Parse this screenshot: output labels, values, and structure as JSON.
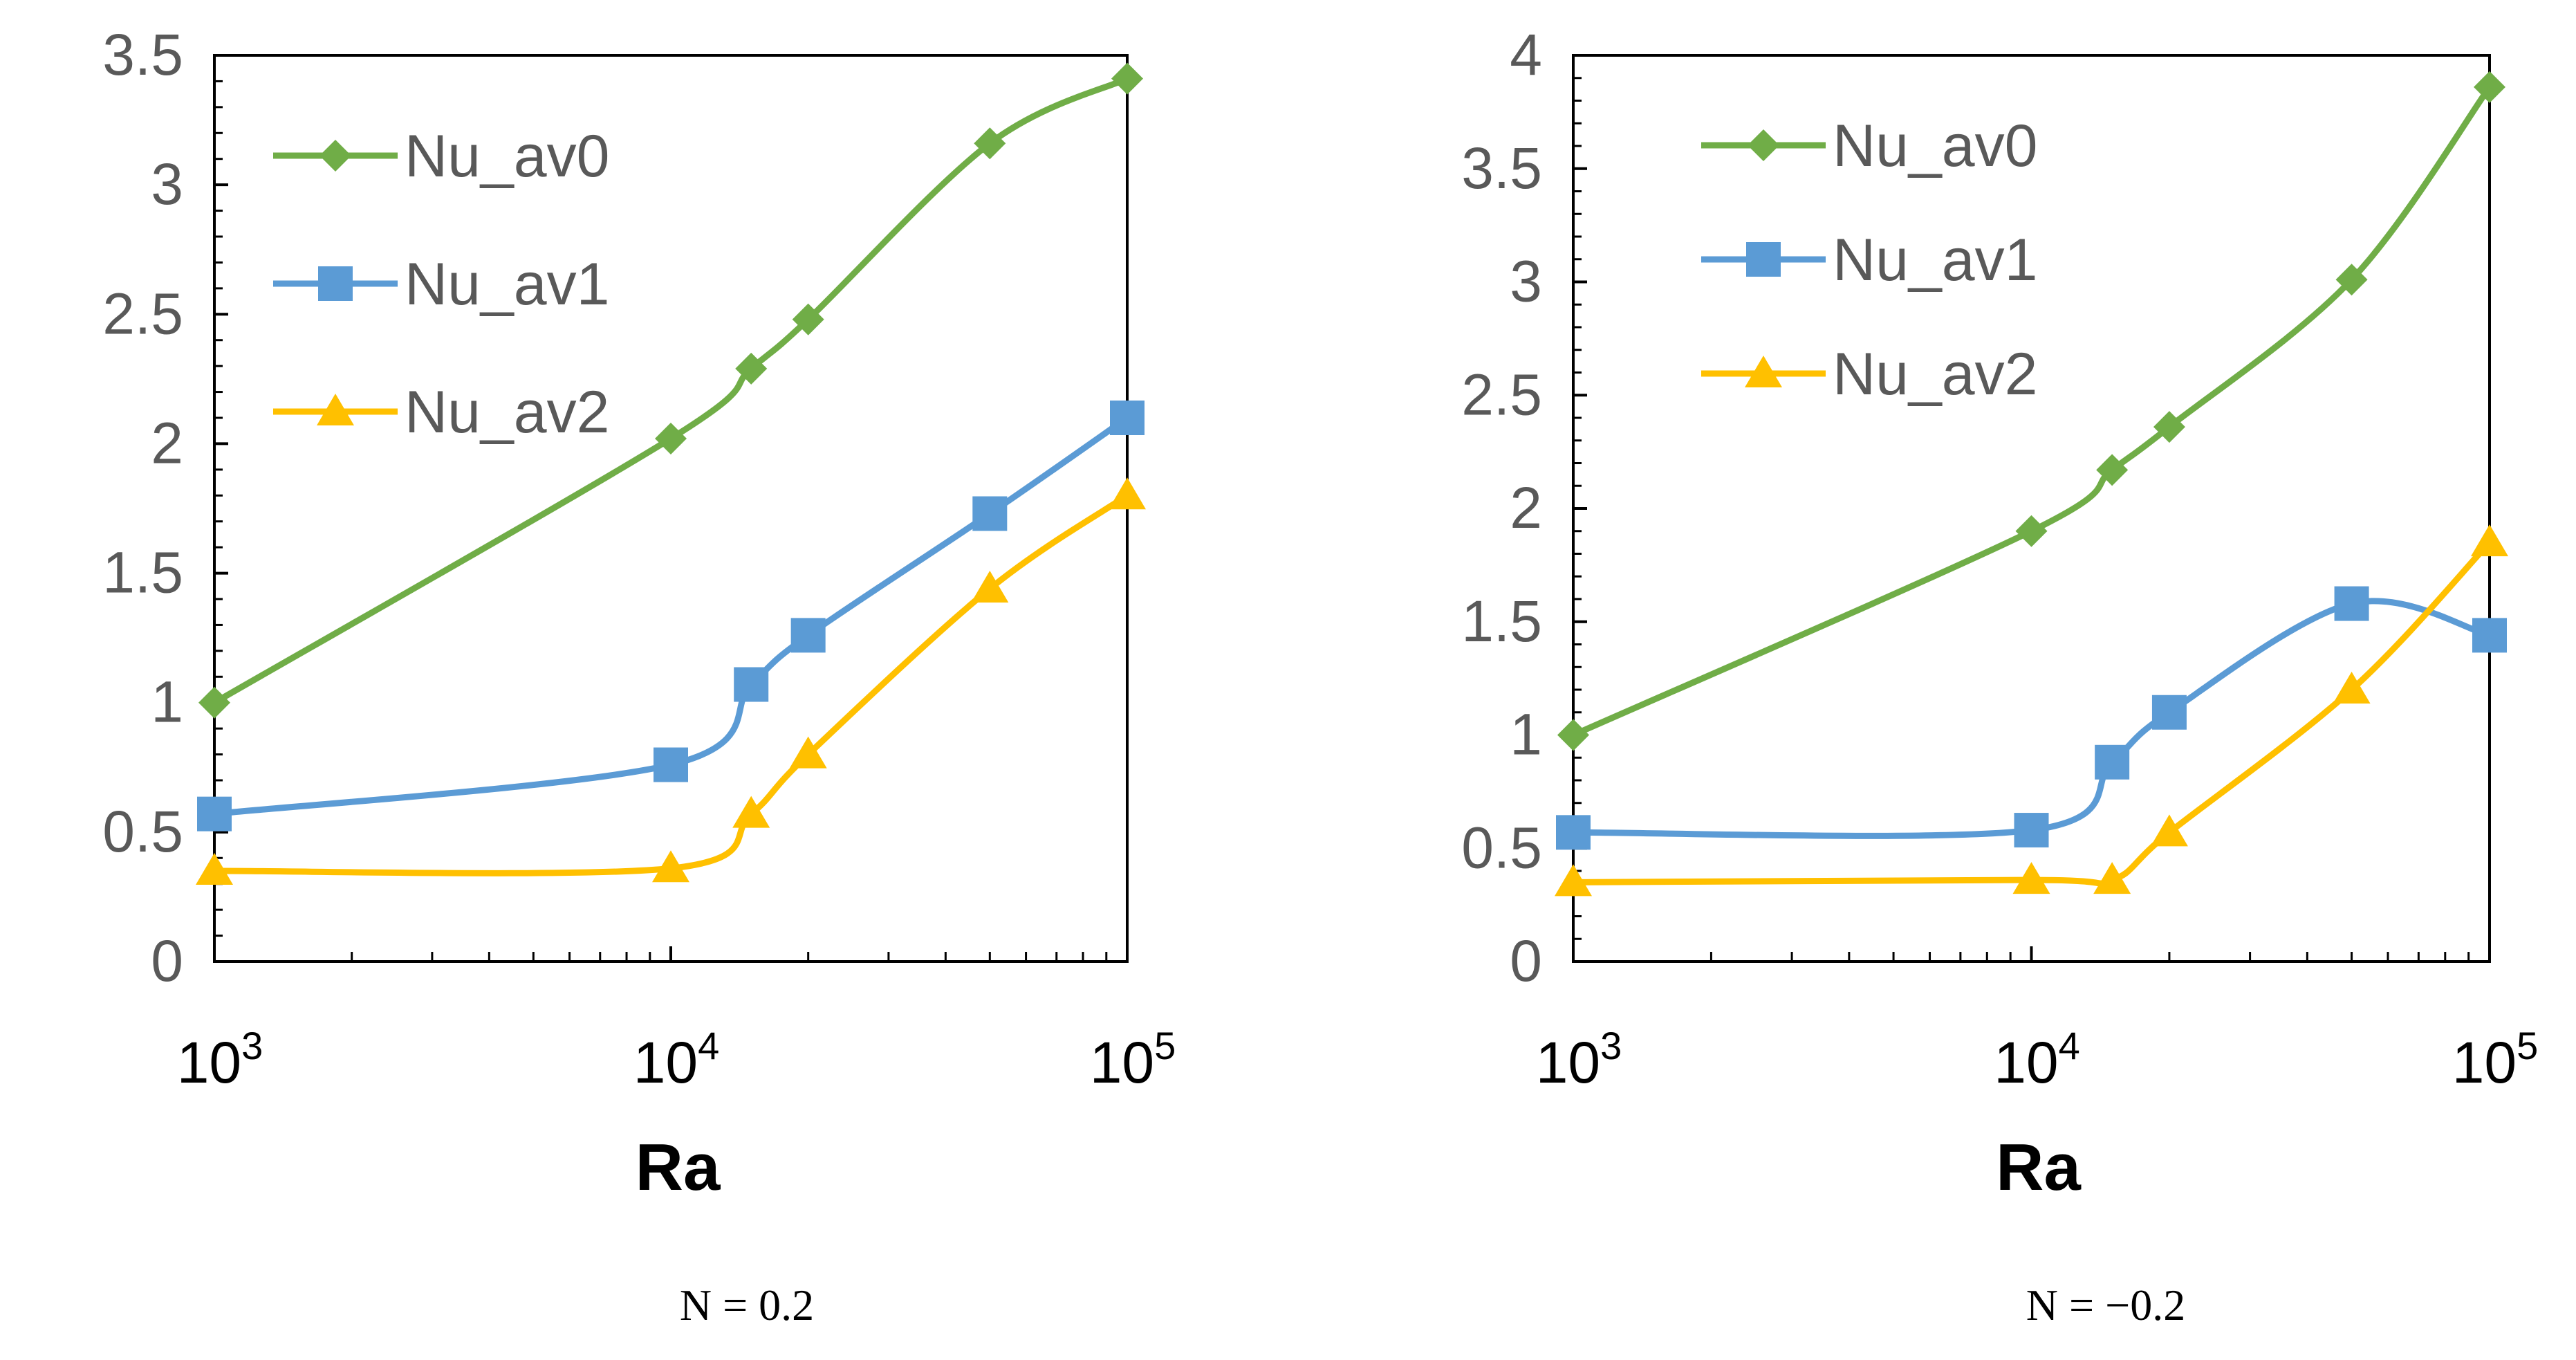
{
  "colors": {
    "s0": "#70AD47",
    "s1": "#5B9BD5",
    "s2": "#FFC000",
    "axis": "#000000",
    "tick_text": "#595959"
  },
  "chart_data": [
    {
      "type": "line",
      "caption": "N = 0.2",
      "xlabel": "Ra",
      "ylabel": "",
      "x_scale": "log",
      "xlim": [
        1000,
        100000
      ],
      "ylim": [
        0,
        3.5
      ],
      "y_ticks": [
        "0",
        "0.5",
        "1",
        "1.5",
        "2",
        "2.5",
        "3",
        "3.5"
      ],
      "x_ticks": [
        {
          "base": "10",
          "exp": "3",
          "value": 1000
        },
        {
          "base": "10",
          "exp": "4",
          "value": 10000
        },
        {
          "base": "10",
          "exp": "5",
          "value": 100000
        }
      ],
      "legend_position": "top-left",
      "x": [
        1000,
        10000,
        15000,
        20000,
        50000,
        100000
      ],
      "series": [
        {
          "name": "Nu_av0",
          "marker": "diamond",
          "color": "#70AD47",
          "values": [
            1.0,
            2.02,
            2.29,
            2.48,
            3.16,
            3.41
          ]
        },
        {
          "name": "Nu_av1",
          "marker": "square",
          "color": "#5B9BD5",
          "values": [
            0.57,
            0.76,
            1.07,
            1.26,
            1.73,
            2.1
          ]
        },
        {
          "name": "Nu_av2",
          "marker": "triangle",
          "color": "#FFC000",
          "values": [
            0.35,
            0.36,
            0.57,
            0.8,
            1.44,
            1.8
          ]
        }
      ]
    },
    {
      "type": "line",
      "caption": "N = −0.2",
      "xlabel": "Ra",
      "ylabel": "",
      "x_scale": "log",
      "xlim": [
        1000,
        100000
      ],
      "ylim": [
        0,
        4
      ],
      "y_ticks": [
        "0",
        "0.5",
        "1",
        "1.5",
        "2",
        "2.5",
        "3",
        "3.5",
        "4"
      ],
      "x_ticks": [
        {
          "base": "10",
          "exp": "3",
          "value": 1000
        },
        {
          "base": "10",
          "exp": "4",
          "value": 10000
        },
        {
          "base": "10",
          "exp": "5",
          "value": 100000
        }
      ],
      "legend_position": "top-left",
      "x": [
        1000,
        10000,
        15000,
        20000,
        50000,
        100000
      ],
      "series": [
        {
          "name": "Nu_av0",
          "marker": "diamond",
          "color": "#70AD47",
          "values": [
            1.0,
            1.9,
            2.17,
            2.36,
            3.01,
            3.86
          ]
        },
        {
          "name": "Nu_av1",
          "marker": "square",
          "color": "#5B9BD5",
          "values": [
            0.57,
            0.58,
            0.88,
            1.1,
            1.58,
            1.44
          ]
        },
        {
          "name": "Nu_av2",
          "marker": "triangle",
          "color": "#FFC000",
          "values": [
            0.35,
            0.36,
            0.36,
            0.57,
            1.2,
            1.85
          ]
        }
      ]
    }
  ]
}
